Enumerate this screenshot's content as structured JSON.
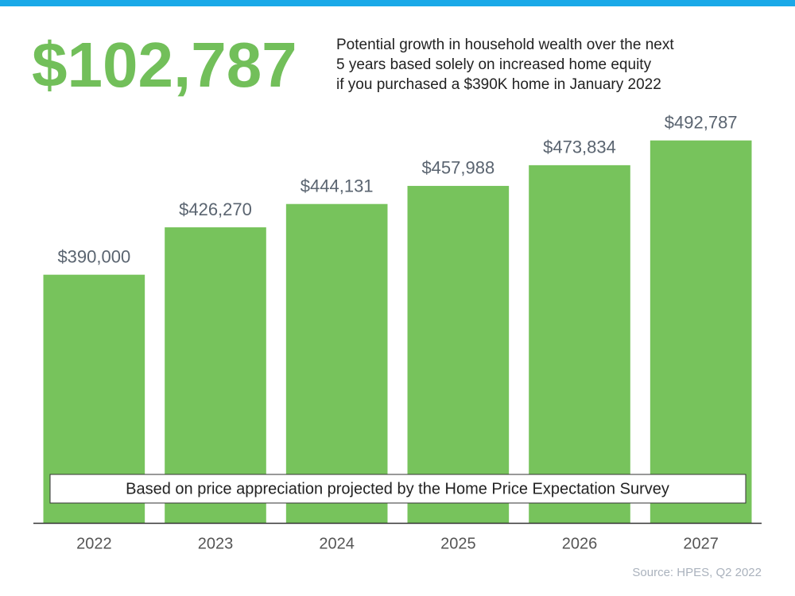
{
  "chart_data": {
    "type": "bar",
    "headline": "$102,787",
    "subtitle": [
      "Potential growth in household wealth over the next",
      "5 years based solely on increased home equity",
      "if you purchased a $390K home in January 2022"
    ],
    "categories": [
      "2022",
      "2023",
      "2024",
      "2025",
      "2026",
      "2027"
    ],
    "values": [
      390000,
      426270,
      444131,
      457988,
      473834,
      492787
    ],
    "value_labels": [
      "$390,000",
      "$426,270",
      "$444,131",
      "$457,988",
      "$473,834",
      "$492,787"
    ],
    "color": "#77c35c",
    "ylim": [
      200000,
      520000
    ],
    "note": "Based on price appreciation projected by the Home Price Expectation Survey",
    "source": "Source: HPES, Q2 2022"
  }
}
